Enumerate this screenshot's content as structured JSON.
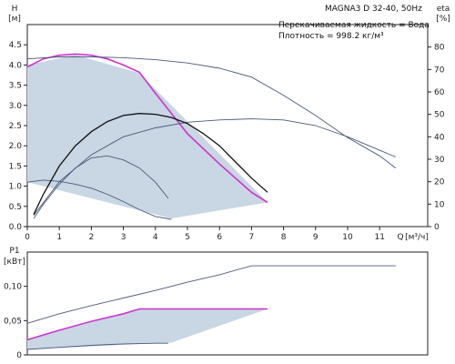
{
  "header": {
    "title": "MAGNA3 D 32-40, 50Hz",
    "fluid_line": "Перекачиваемая жидкость = Вода",
    "density_line": "Плотность = 998.2 кг/м³"
  },
  "colors": {
    "area_fill": "#c9d6e3",
    "magenta": "#cc33cc",
    "black": "#111111",
    "blue_gray": "#4a5a7a",
    "axis": "#222222",
    "grid": "#e6e6e6"
  },
  "chart_data": [
    {
      "type": "line",
      "ylabel": "H",
      "yunit": "[м]",
      "y2label": "eta",
      "y2unit": "[%]",
      "xlabel": "Q",
      "xunit": "[м³/ч]",
      "xlim": [
        0,
        12.5
      ],
      "ylim": [
        0,
        5
      ],
      "y2lim": [
        0,
        90
      ],
      "x_ticks": [
        0,
        1,
        2,
        3,
        4,
        5,
        6,
        7,
        8,
        9,
        10,
        11
      ],
      "x_tick_labels": [
        "0",
        "1",
        "2",
        "3",
        "4",
        "5",
        "6",
        "7",
        "8",
        "9",
        "10",
        "11"
      ],
      "y_ticks": [
        0,
        0.5,
        1,
        1.5,
        2,
        2.5,
        3,
        3.5,
        4,
        4.5
      ],
      "y_tick_labels": [
        "0.0",
        "0.5",
        "1.0",
        "1.5",
        "2.0",
        "2.5",
        "3.0",
        "3.5",
        "4.0",
        "4.5"
      ],
      "y2_ticks": [
        0,
        10,
        20,
        30,
        40,
        50,
        60,
        70,
        80
      ],
      "y2_tick_labels": [
        "0",
        "10",
        "20",
        "30",
        "40",
        "50",
        "60",
        "70",
        "80"
      ],
      "grid": false,
      "operating_area": {
        "x": [
          0,
          1.5,
          3.5,
          7.5,
          4.5,
          0
        ],
        "y": [
          4.0,
          4.25,
          3.8,
          0.6,
          0.2,
          1.1
        ]
      },
      "series": [
        {
          "role": "max-curve",
          "color": "magenta",
          "axis": "y",
          "x": [
            0,
            0.5,
            1.0,
            1.5,
            2.0,
            2.5,
            3.0,
            3.5,
            4.0,
            5.0,
            6.0,
            7.0,
            7.5
          ],
          "y": [
            3.95,
            4.15,
            4.24,
            4.27,
            4.24,
            4.15,
            4.0,
            3.82,
            3.3,
            2.3,
            1.55,
            0.85,
            0.6
          ]
        },
        {
          "role": "min-curve",
          "color": "blue_gray",
          "axis": "y",
          "x": [
            0,
            0.5,
            1.0,
            1.5,
            2.0,
            2.5,
            3.0,
            3.5,
            4.0,
            4.5
          ],
          "y": [
            1.1,
            1.15,
            1.12,
            1.05,
            0.95,
            0.8,
            0.62,
            0.42,
            0.25,
            0.18
          ]
        },
        {
          "role": "max-speed-head",
          "color": "blue_gray",
          "axis": "y",
          "x": [
            0,
            1,
            2,
            3,
            4,
            5,
            6,
            7,
            8,
            9,
            10,
            11,
            11.5
          ],
          "y": [
            4.15,
            4.2,
            4.2,
            4.18,
            4.13,
            4.05,
            3.92,
            3.7,
            3.25,
            2.75,
            2.2,
            1.75,
            1.45
          ]
        },
        {
          "role": "efficiency-max",
          "color": "blue_gray",
          "axis": "y2",
          "x": [
            0.2,
            1,
            2,
            3,
            4,
            5,
            6,
            7,
            8,
            9,
            10,
            11,
            11.5
          ],
          "y": [
            5,
            20,
            32,
            40,
            44,
            46.5,
            47.5,
            48,
            47.5,
            45,
            40,
            34,
            31
          ]
        },
        {
          "role": "efficiency-black",
          "color": "black",
          "axis": "y",
          "x": [
            0.2,
            0.5,
            1.0,
            1.5,
            2.0,
            2.5,
            3.0,
            3.5,
            4.0,
            4.5,
            5.0,
            5.5,
            6.0,
            6.5,
            7.0,
            7.5
          ],
          "y": [
            0.3,
            0.8,
            1.5,
            2.0,
            2.35,
            2.6,
            2.75,
            2.8,
            2.78,
            2.7,
            2.55,
            2.3,
            2.0,
            1.6,
            1.2,
            0.85
          ]
        },
        {
          "role": "efficiency-min",
          "color": "blue_gray",
          "axis": "y",
          "x": [
            0.2,
            0.5,
            1.0,
            1.5,
            2.0,
            2.5,
            3.0,
            3.5,
            4.0,
            4.4
          ],
          "y": [
            0.2,
            0.55,
            1.05,
            1.45,
            1.7,
            1.75,
            1.65,
            1.45,
            1.1,
            0.7
          ]
        }
      ]
    },
    {
      "type": "line",
      "ylabel": "P1",
      "yunit": "[кВт]",
      "xlim": [
        0,
        12.5
      ],
      "ylim": [
        0,
        0.15
      ],
      "y_ticks": [
        0,
        0.05,
        0.1
      ],
      "y_tick_labels": [
        "0",
        "0,05",
        "0,10"
      ],
      "grid": false,
      "operating_area": {
        "x": [
          0,
          3.5,
          7.5,
          4.5,
          0
        ],
        "y": [
          0.022,
          0.067,
          0.067,
          0.018,
          0.008
        ]
      },
      "series": [
        {
          "role": "max-speed-power",
          "color": "blue_gray",
          "x": [
            0,
            1,
            2,
            3,
            4,
            5,
            6,
            7,
            8,
            9,
            10,
            11,
            11.5
          ],
          "y": [
            0.046,
            0.06,
            0.072,
            0.083,
            0.094,
            0.106,
            0.117,
            0.13,
            0.13,
            0.13,
            0.13,
            0.13,
            0.13
          ]
        },
        {
          "role": "max-curve-power",
          "color": "magenta",
          "x": [
            0,
            1,
            2,
            3,
            3.5,
            4,
            5,
            6,
            7,
            7.5
          ],
          "y": [
            0.022,
            0.036,
            0.049,
            0.06,
            0.067,
            0.067,
            0.067,
            0.067,
            0.067,
            0.067
          ]
        },
        {
          "role": "min-curve-power",
          "color": "blue_gray",
          "x": [
            0,
            1,
            2,
            3,
            4,
            4.4
          ],
          "y": [
            0.008,
            0.011,
            0.014,
            0.016,
            0.017,
            0.017
          ]
        }
      ]
    }
  ]
}
